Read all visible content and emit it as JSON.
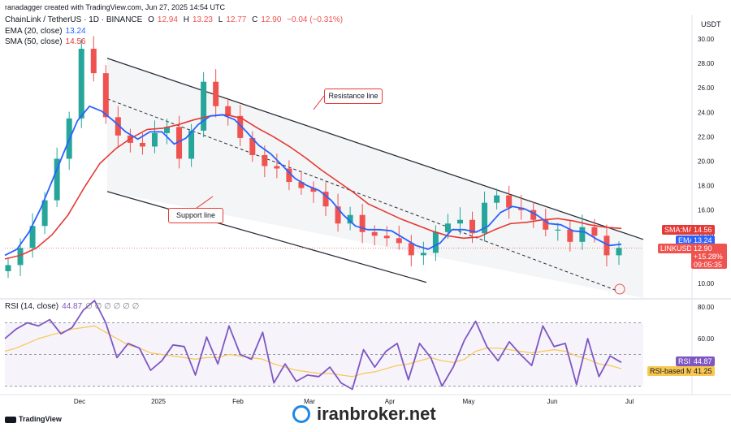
{
  "header": {
    "created_by": "ranadagger created with TradingView.com, Jun 27, 2025 14:54 UTC",
    "symbol_line": "ChainLink / TetherUS · 1D · BINANCE",
    "ohlc": {
      "o_label": "O",
      "o": "12.94",
      "h_label": "H",
      "h": "13.23",
      "l_label": "L",
      "l": "12.77",
      "c_label": "C",
      "c": "12.90",
      "change": "−0.04 (−0.31%)"
    },
    "ema_label": "EMA (20, close)",
    "ema_value": "13.24",
    "sma_label": "SMA (50, close)",
    "sma_value": "14.56",
    "rsi_label": "RSI (14, close)",
    "rsi_value": "44.87",
    "rsi_extra": "∅ ∅ ∅ ∅ ∅ ∅"
  },
  "annotations": {
    "resistance": "Resistance line",
    "support": "Support line"
  },
  "right_tags": {
    "usdt": "USDT",
    "sma_tag": "SMA:MA",
    "sma_val": "14.56",
    "ema_tag": "EMA",
    "ema_val": "13.24",
    "sym_tag": "LINKUSDT",
    "sym_val": "12.90",
    "pct": "+15.28%",
    "countdown": "09:05:35",
    "rsi_tag": "RSI",
    "rsi_val": "44.87",
    "rsi_ma_tag": "RSI-based MA",
    "rsi_ma_val": "41.25"
  },
  "footer": {
    "brand": "TradingView",
    "watermark": "iranbroker.net"
  },
  "colors": {
    "up": "#26a69a",
    "down": "#ef5350",
    "ema": "#2962ff",
    "sma": "#e53935",
    "rsi": "#7e57c2",
    "rsi_ma": "#f9c74f"
  },
  "chart_data": [
    {
      "type": "line",
      "subtype": "candlestick",
      "ylim": [
        8.9,
        31.5
      ],
      "y_ticks": [
        "30.00",
        "28.00",
        "26.00",
        "24.00",
        "22.00",
        "20.00",
        "18.00",
        "16.00",
        "14.00",
        "12.00",
        "10.00"
      ],
      "x_ticks": [
        "Dec",
        "2025",
        "Feb",
        "Mar",
        "Apr",
        "May",
        "Jun",
        "Jul"
      ],
      "series": [
        {
          "name": "EMA (20, close)",
          "values": [
            12.3,
            12.8,
            14.2,
            16.2,
            18.6,
            21.0,
            23.3,
            24.5,
            24.1,
            23.3,
            22.4,
            21.8,
            22.4,
            22.4,
            21.4,
            21.9,
            23.0,
            23.7,
            23.8,
            23.4,
            22.4,
            21.3,
            20.6,
            19.6,
            18.6,
            18.0,
            17.6,
            16.8,
            15.6,
            14.7,
            14.4,
            14.4,
            14.3,
            13.7,
            13.1,
            12.8,
            13.3,
            14.4,
            14.4,
            14.2,
            14.7,
            15.8,
            16.3,
            16.1,
            15.6,
            14.9,
            14.8,
            14.3,
            14.2,
            13.6,
            13.1,
            13.2
          ]
        },
        {
          "name": "SMA (50, close)",
          "values": [
            12.0,
            12.3,
            12.9,
            14.0,
            15.6,
            17.8,
            19.8,
            21.0,
            21.9,
            22.6,
            22.7,
            23.0,
            23.4,
            23.7,
            23.8,
            23.5,
            22.7,
            22.0,
            21.2,
            20.3,
            19.3,
            18.4,
            17.5,
            16.5,
            15.9,
            15.3,
            14.8,
            14.3,
            13.9,
            13.7,
            13.8,
            14.4,
            14.9,
            15.0,
            15.2,
            15.3,
            15.1,
            14.8,
            14.6,
            14.5
          ]
        },
        {
          "name": "LINKUSDT candles (approx. close)",
          "values": [
            11.5,
            12.9,
            14.7,
            16.8,
            20.2,
            23.5,
            29.2,
            27.2,
            23.6,
            22.1,
            21.5,
            21.2,
            22.3,
            22.8,
            20.2,
            22.5,
            26.5,
            24.5,
            23.7,
            21.9,
            20.5,
            19.6,
            19.4,
            18.3,
            17.8,
            17.5,
            16.3,
            14.9,
            15.6,
            14.2,
            13.9,
            13.7,
            13.3,
            12.3,
            12.5,
            14.2,
            14.9,
            15.2,
            14.1,
            16.6,
            17.2,
            16.2,
            16.0,
            15.2,
            14.4,
            14.4,
            13.4,
            14.6,
            13.9,
            12.3,
            12.9
          ]
        }
      ],
      "resistance_line": {
        "from": [
          0.02,
          30.9
        ],
        "to": [
          1.0,
          13.6
        ]
      },
      "support_line": {
        "from": [
          0.0,
          19.9
        ],
        "to": [
          0.72,
          9.2
        ]
      },
      "mid_line": {
        "from": [
          0.0,
          25.1
        ],
        "to": [
          1.0,
          9.4
        ]
      }
    },
    {
      "type": "line",
      "title": "RSI (14, close)",
      "ylim": [
        24,
        88
      ],
      "y_ticks": [
        "80.00",
        "60.00"
      ],
      "bands": [
        30,
        50,
        70
      ],
      "series": [
        {
          "name": "RSI",
          "values": [
            60,
            66,
            70,
            68,
            72,
            63,
            67,
            78,
            84,
            70,
            48,
            57,
            54,
            40,
            46,
            56,
            55,
            37,
            61,
            44,
            68,
            50,
            47,
            64,
            32,
            44,
            33,
            37,
            36,
            42,
            32,
            28,
            53,
            42,
            52,
            57,
            34,
            57,
            48,
            30,
            42,
            59,
            71,
            55,
            46,
            58,
            50,
            43,
            68,
            55,
            57,
            31,
            60,
            36,
            49,
            45
          ]
        },
        {
          "name": "RSI-based MA",
          "values": [
            52,
            54,
            57,
            60,
            62,
            64,
            66,
            67,
            68,
            64,
            60,
            56,
            54,
            51,
            50,
            49,
            48,
            47,
            48,
            48,
            50,
            49,
            48,
            47,
            44,
            42,
            40,
            39,
            38,
            38,
            37,
            36,
            38,
            39,
            41,
            43,
            44,
            46,
            48,
            46,
            45,
            47,
            52,
            54,
            54,
            53,
            52,
            51,
            52,
            53,
            52,
            49,
            47,
            44,
            43,
            41
          ]
        }
      ]
    }
  ]
}
